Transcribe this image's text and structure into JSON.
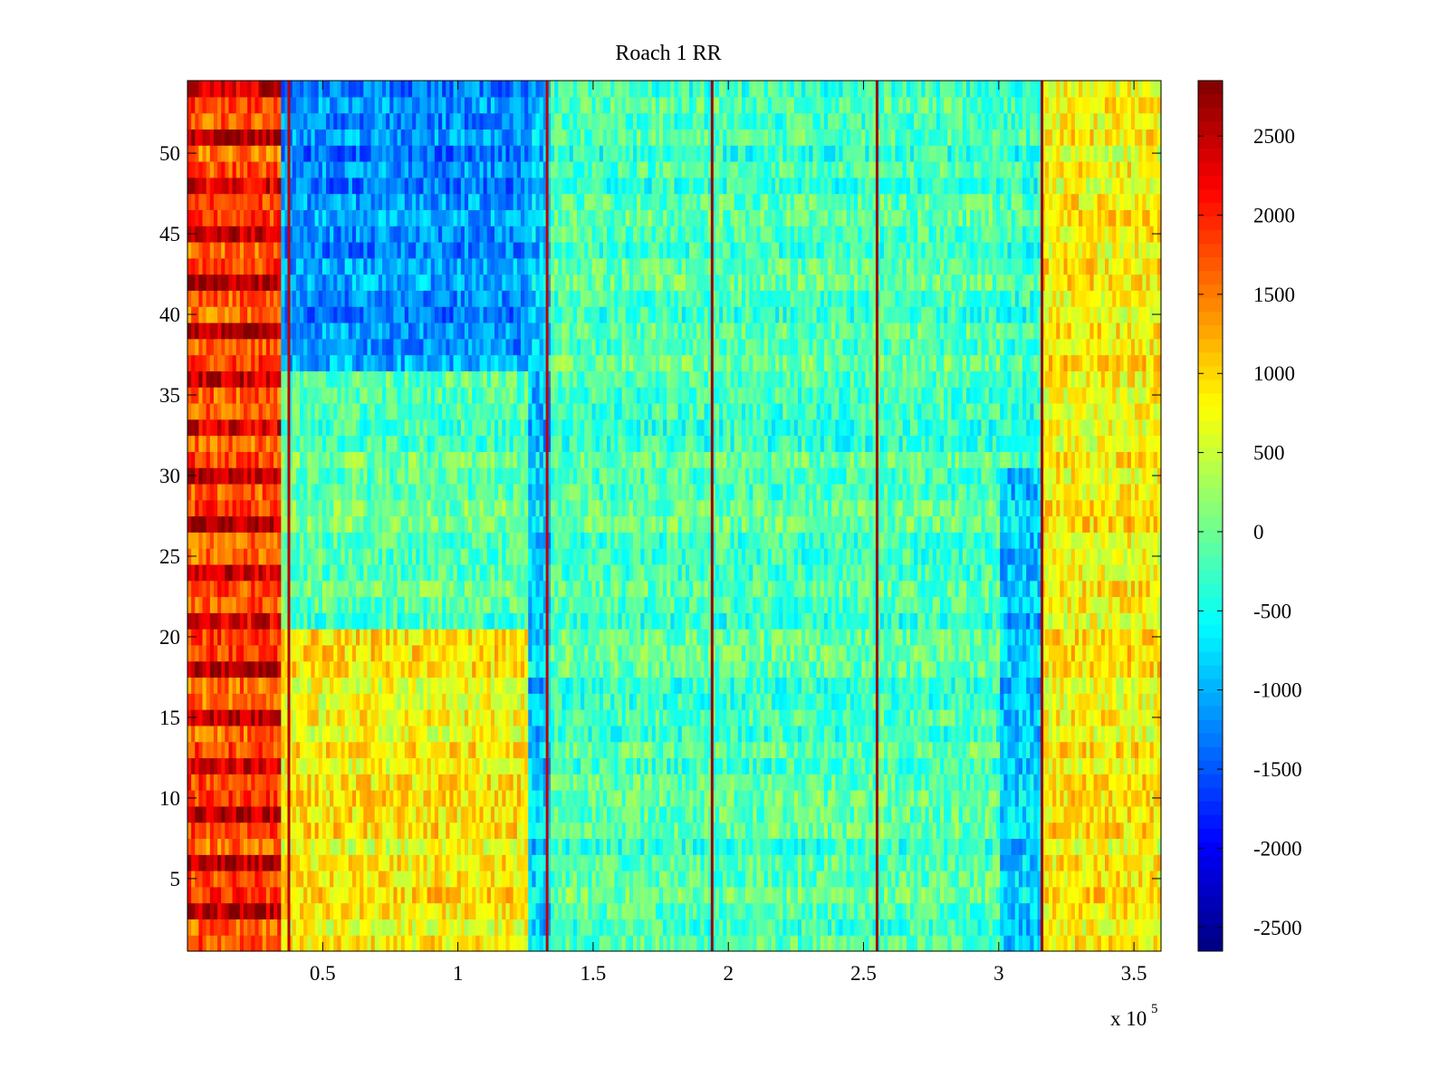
{
  "chart_data": {
    "type": "heatmap",
    "title": "Roach 1 RR",
    "xlabel": "",
    "ylabel": "",
    "x_range": [
      0,
      360000
    ],
    "y_range": [
      0.5,
      54.5
    ],
    "n_rows": 54,
    "x_scale_note": "x 10",
    "x_scale_exponent": "5",
    "x_ticks": [
      {
        "value": 50000,
        "label": "0.5"
      },
      {
        "value": 100000,
        "label": "1"
      },
      {
        "value": 150000,
        "label": "1.5"
      },
      {
        "value": 200000,
        "label": "2"
      },
      {
        "value": 250000,
        "label": "2.5"
      },
      {
        "value": 300000,
        "label": "3"
      },
      {
        "value": 350000,
        "label": "3.5"
      }
    ],
    "y_ticks": [
      {
        "value": 5,
        "label": "5"
      },
      {
        "value": 10,
        "label": "10"
      },
      {
        "value": 15,
        "label": "15"
      },
      {
        "value": 20,
        "label": "20"
      },
      {
        "value": 25,
        "label": "25"
      },
      {
        "value": 30,
        "label": "30"
      },
      {
        "value": 35,
        "label": "35"
      },
      {
        "value": 40,
        "label": "40"
      },
      {
        "value": 45,
        "label": "45"
      },
      {
        "value": 50,
        "label": "50"
      }
    ],
    "colorbar": {
      "colormap": "jet",
      "range": [
        -2650,
        2850
      ],
      "ticks": [
        {
          "value": 2500,
          "label": "2500"
        },
        {
          "value": 2000,
          "label": "2000"
        },
        {
          "value": 1500,
          "label": "1500"
        },
        {
          "value": 1000,
          "label": "1000"
        },
        {
          "value": 500,
          "label": "500"
        },
        {
          "value": 0,
          "label": "0"
        },
        {
          "value": -500,
          "label": "-500"
        },
        {
          "value": -1000,
          "label": "-1000"
        },
        {
          "value": -1500,
          "label": "-1500"
        },
        {
          "value": -2000,
          "label": "-2000"
        },
        {
          "value": -2500,
          "label": "-2500"
        }
      ]
    },
    "segments": [
      {
        "x_start": 0,
        "x_end": 35000,
        "typical_value": 1900,
        "description": "high (red/dark red) for most rows"
      },
      {
        "x_start": 35000,
        "x_end": 126000,
        "typical_value": 300,
        "description": "mixed; blue band in rows 37-53, yellow-orange in rows 1-20"
      },
      {
        "x_start": 126000,
        "x_end": 135000,
        "typical_value": -900,
        "description": "blue transition band"
      },
      {
        "x_start": 135000,
        "x_end": 300000,
        "typical_value": -200,
        "description": "cyan/green"
      },
      {
        "x_start": 300000,
        "x_end": 316000,
        "typical_value": -900,
        "description": "blue in rows 1-30"
      },
      {
        "x_start": 316000,
        "x_end": 360000,
        "typical_value": 800,
        "description": "yellow-orange"
      }
    ],
    "vertical_lines": [
      {
        "x": 37500,
        "value": 2500
      },
      {
        "x": 133000,
        "value": 2500
      },
      {
        "x": 194000,
        "value": 2700
      },
      {
        "x": 255000,
        "value": 2700
      },
      {
        "x": 316000,
        "value": 2700
      }
    ]
  }
}
